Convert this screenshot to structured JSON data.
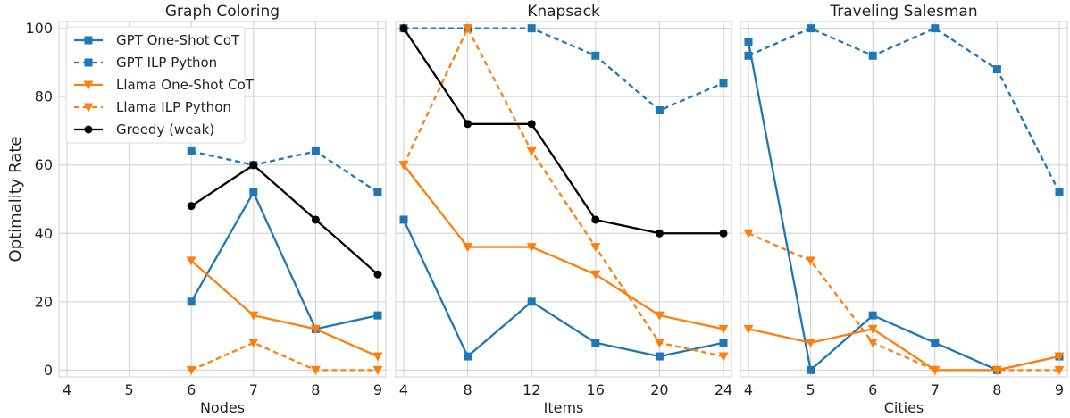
{
  "figure": {
    "ylabel": "Optimality Rate"
  },
  "legend": {
    "placement": "top-left of first panel",
    "entries": [
      {
        "label": "GPT One-Shot CoT",
        "color": "#1f77b4",
        "dashed": false,
        "marker": "square"
      },
      {
        "label": "GPT ILP Python",
        "color": "#1f77b4",
        "dashed": true,
        "marker": "square"
      },
      {
        "label": "Llama One-Shot CoT",
        "color": "#ff7f0e",
        "dashed": false,
        "marker": "triangle-down"
      },
      {
        "label": "Llama ILP Python",
        "color": "#ff7f0e",
        "dashed": true,
        "marker": "triangle-down"
      },
      {
        "label": "Greedy (weak)",
        "color": "#000000",
        "dashed": false,
        "marker": "circle"
      }
    ]
  },
  "chart_data": [
    {
      "type": "line",
      "title": "Graph Coloring",
      "xlabel": "Nodes",
      "ylabel": "Optimality Rate",
      "xlim": [
        4,
        9
      ],
      "ylim": [
        -2,
        102
      ],
      "xticks": [
        4,
        5,
        6,
        7,
        8,
        9
      ],
      "yticks": [
        0,
        20,
        40,
        60,
        80,
        100
      ],
      "grid": true,
      "series": [
        {
          "name": "GPT One-Shot CoT",
          "color": "#1f77b4",
          "dashed": false,
          "marker": "square",
          "x": [
            6,
            7,
            8,
            9
          ],
          "y": [
            20,
            52,
            12,
            16
          ]
        },
        {
          "name": "GPT ILP Python",
          "color": "#1f77b4",
          "dashed": true,
          "marker": "square",
          "x": [
            6,
            7,
            8,
            9
          ],
          "y": [
            64,
            60,
            64,
            52
          ]
        },
        {
          "name": "Llama One-Shot CoT",
          "color": "#ff7f0e",
          "dashed": false,
          "marker": "triangle-down",
          "x": [
            6,
            7,
            8,
            9
          ],
          "y": [
            32,
            16,
            12,
            4
          ]
        },
        {
          "name": "Llama ILP Python",
          "color": "#ff7f0e",
          "dashed": true,
          "marker": "triangle-down",
          "x": [
            6,
            7,
            8,
            9
          ],
          "y": [
            0,
            8,
            0,
            0
          ]
        },
        {
          "name": "Greedy (weak)",
          "color": "#000000",
          "dashed": false,
          "marker": "circle",
          "x": [
            6,
            7,
            8,
            9
          ],
          "y": [
            48,
            60,
            44,
            28
          ]
        }
      ]
    },
    {
      "type": "line",
      "title": "Knapsack",
      "xlabel": "Items",
      "ylabel": "",
      "xlim": [
        4,
        24
      ],
      "ylim": [
        -2,
        102
      ],
      "xticks": [
        4,
        8,
        12,
        16,
        20,
        24
      ],
      "yticks": [
        0,
        20,
        40,
        60,
        80,
        100
      ],
      "grid": true,
      "series": [
        {
          "name": "GPT One-Shot CoT",
          "color": "#1f77b4",
          "dashed": false,
          "marker": "square",
          "x": [
            4,
            8,
            12,
            16,
            20,
            24
          ],
          "y": [
            44,
            4,
            20,
            8,
            4,
            8
          ]
        },
        {
          "name": "GPT ILP Python",
          "color": "#1f77b4",
          "dashed": true,
          "marker": "square",
          "x": [
            4,
            8,
            12,
            16,
            20,
            24
          ],
          "y": [
            100,
            100,
            100,
            92,
            76,
            84
          ]
        },
        {
          "name": "Llama One-Shot CoT",
          "color": "#ff7f0e",
          "dashed": false,
          "marker": "triangle-down",
          "x": [
            4,
            8,
            12,
            16,
            20,
            24
          ],
          "y": [
            60,
            36,
            36,
            28,
            16,
            12
          ]
        },
        {
          "name": "Llama ILP Python",
          "color": "#ff7f0e",
          "dashed": true,
          "marker": "triangle-down",
          "x": [
            4,
            8,
            12,
            16,
            20,
            24
          ],
          "y": [
            60,
            100,
            64,
            36,
            8,
            4
          ]
        },
        {
          "name": "Greedy (weak)",
          "color": "#000000",
          "dashed": false,
          "marker": "circle",
          "x": [
            4,
            8,
            12,
            16,
            20,
            24
          ],
          "y": [
            100,
            72,
            72,
            44,
            40,
            40
          ]
        }
      ]
    },
    {
      "type": "line",
      "title": "Traveling Salesman",
      "xlabel": "Cities",
      "ylabel": "",
      "xlim": [
        4,
        9
      ],
      "ylim": [
        -2,
        102
      ],
      "xticks": [
        4,
        5,
        6,
        7,
        8,
        9
      ],
      "yticks": [
        0,
        20,
        40,
        60,
        80,
        100
      ],
      "grid": true,
      "series": [
        {
          "name": "GPT One-Shot CoT",
          "color": "#1f77b4",
          "dashed": false,
          "marker": "square",
          "x": [
            4,
            5,
            6,
            7,
            8,
            9
          ],
          "y": [
            96,
            0,
            16,
            8,
            0,
            4
          ]
        },
        {
          "name": "GPT ILP Python",
          "color": "#1f77b4",
          "dashed": true,
          "marker": "square",
          "x": [
            4,
            5,
            6,
            7,
            8,
            9
          ],
          "y": [
            92,
            100,
            92,
            100,
            88,
            52
          ]
        },
        {
          "name": "Llama One-Shot CoT",
          "color": "#ff7f0e",
          "dashed": false,
          "marker": "triangle-down",
          "x": [
            4,
            5,
            6,
            7,
            8,
            9
          ],
          "y": [
            12,
            8,
            12,
            0,
            0,
            4
          ]
        },
        {
          "name": "Llama ILP Python",
          "color": "#ff7f0e",
          "dashed": true,
          "marker": "triangle-down",
          "x": [
            4,
            5,
            6,
            7,
            8,
            9
          ],
          "y": [
            40,
            32,
            8,
            0,
            0,
            0
          ]
        }
      ]
    }
  ]
}
